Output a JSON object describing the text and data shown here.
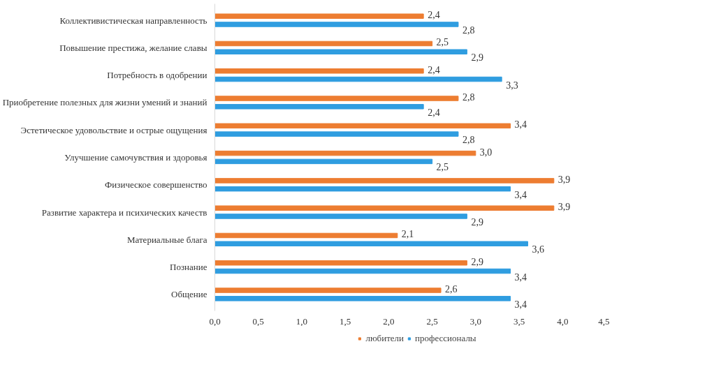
{
  "chart_data": {
    "type": "bar",
    "orientation": "horizontal",
    "categories": [
      "Коллективистическая направленность",
      "Повышение престижа, желание славы",
      "Потребность в одобрении",
      "Приобретение полезных для жизни умений и знаний",
      "Эстетическое удовольствие и острые ощущения",
      "Улучшение самочувствия и здоровья",
      "Физическое совершенство",
      "Развитие характера и психических качеств",
      "Материальные блага",
      "Познание",
      "Общение"
    ],
    "series": [
      {
        "name": "любители",
        "color": "#ed7d31",
        "values": [
          2.4,
          2.5,
          2.4,
          2.8,
          3.4,
          3.0,
          3.9,
          3.9,
          2.1,
          2.9,
          2.6
        ],
        "value_labels": [
          "2,4",
          "2,5",
          "2,4",
          "2,8",
          "3,4",
          "3,0",
          "3,9",
          "3,9",
          "2,1",
          "2,9",
          "2,6"
        ]
      },
      {
        "name": "профессионалы",
        "color": "#2f9de0",
        "values": [
          2.8,
          2.9,
          3.3,
          2.4,
          2.8,
          2.5,
          3.4,
          2.9,
          3.6,
          3.4,
          3.4
        ],
        "value_labels": [
          "2,8",
          "2,9",
          "3,3",
          "2,4",
          "2,8",
          "2,5",
          "3,4",
          "2,9",
          "3,6",
          "3,4",
          "3,4"
        ]
      }
    ],
    "xlim": [
      0,
      4.5
    ],
    "xticks": [
      {
        "value": 0,
        "label": "0,0"
      },
      {
        "value": 0.5,
        "label": "0,5"
      },
      {
        "value": 1,
        "label": "1,0"
      },
      {
        "value": 1.5,
        "label": "1,5"
      },
      {
        "value": 2,
        "label": "2,0"
      },
      {
        "value": 2.5,
        "label": "2,5"
      },
      {
        "value": 3,
        "label": "3,0"
      },
      {
        "value": 3.5,
        "label": "3,5"
      },
      {
        "value": 4,
        "label": "4,0"
      },
      {
        "value": 4.5,
        "label": "4,5"
      }
    ],
    "grid": false,
    "legend": "bottom"
  }
}
